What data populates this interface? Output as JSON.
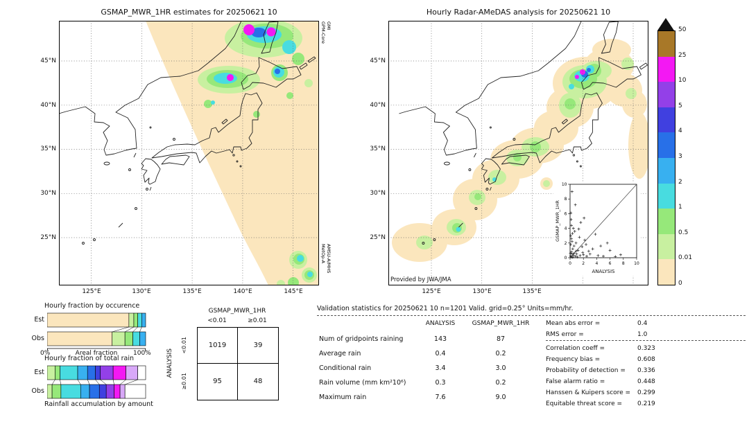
{
  "chart_data": [
    {
      "name": "gsmap_mwr_map",
      "type": "heatmap",
      "title": "GSMAP_MWR_1HR estimates for 20250621 10",
      "x_ticks": [
        "125°E",
        "130°E",
        "135°E",
        "140°E",
        "145°E"
      ],
      "y_ticks": [
        "45°N",
        "40°N",
        "35°N",
        "30°N",
        "25°N"
      ],
      "annotations": [
        "GPM-Core",
        "GMI",
        "MetOp-A",
        "AMSU-A/MHS"
      ],
      "units": "mm/hr"
    },
    {
      "name": "radar_amedas_map",
      "type": "heatmap",
      "title": "Hourly Radar-AMeDAS analysis for 20250621 10",
      "x_ticks": [
        "125°E",
        "130°E",
        "135°E"
      ],
      "y_ticks": [
        "45°N",
        "40°N",
        "35°N",
        "30°N",
        "25°N"
      ],
      "credit": "Provided by JWA/JMA",
      "units": "mm/hr"
    },
    {
      "name": "precip_colorbar",
      "type": "legend",
      "tick_labels": [
        "50",
        "25",
        "10",
        "5",
        "4",
        "3",
        "2",
        "1",
        "0.5",
        "0.01",
        "0"
      ],
      "colors_top_to_bottom": [
        "#a87828",
        "#f318f3",
        "#9340e8",
        "#4040e0",
        "#2870e8",
        "#38b0f0",
        "#48dce0",
        "#96e87a",
        "#c8f0a0",
        "#fbe6bd"
      ],
      "overflow_arrow_color": "#111111"
    },
    {
      "name": "hourly_fraction_by_occurrence",
      "type": "bar",
      "title": "Hourly fraction by occurence",
      "categories": [
        "Est",
        "Obs"
      ],
      "xlabel": "Areal fraction",
      "xlim_labels": [
        "0%",
        "100%"
      ],
      "series": [
        {
          "row": "Est",
          "segments": [
            {
              "color": "#fbe6bd",
              "pct": 83
            },
            {
              "color": "#c8f0a0",
              "pct": 5
            },
            {
              "color": "#96e87a",
              "pct": 4
            },
            {
              "color": "#48dce0",
              "pct": 4
            },
            {
              "color": "#38b0f0",
              "pct": 4
            }
          ]
        },
        {
          "row": "Obs",
          "segments": [
            {
              "color": "#fbe6bd",
              "pct": 66
            },
            {
              "color": "#c8f0a0",
              "pct": 13
            },
            {
              "color": "#96e87a",
              "pct": 8
            },
            {
              "color": "#48dce0",
              "pct": 7
            },
            {
              "color": "#38b0f0",
              "pct": 6
            }
          ]
        }
      ]
    },
    {
      "name": "hourly_fraction_of_total_rain",
      "type": "bar",
      "title": "Hourly fraction of total rain",
      "categories": [
        "Est",
        "Obs"
      ],
      "caption": "Rainfall accumulation by amount",
      "series": [
        {
          "row": "Est",
          "segments": [
            {
              "color": "#c8f0a0",
              "pct": 8
            },
            {
              "color": "#96e87a",
              "pct": 5
            },
            {
              "color": "#48dce0",
              "pct": 18
            },
            {
              "color": "#38b0f0",
              "pct": 10
            },
            {
              "color": "#2870e8",
              "pct": 8
            },
            {
              "color": "#4040e0",
              "pct": 5
            },
            {
              "color": "#9340e8",
              "pct": 13
            },
            {
              "color": "#f318f3",
              "pct": 13
            },
            {
              "color": "#d8a8f8",
              "pct": 12
            },
            {
              "color": "#ffffff",
              "pct": 8
            }
          ]
        },
        {
          "row": "Obs",
          "segments": [
            {
              "color": "#c8f0a0",
              "pct": 5
            },
            {
              "color": "#96e87a",
              "pct": 9
            },
            {
              "color": "#48dce0",
              "pct": 20
            },
            {
              "color": "#38b0f0",
              "pct": 9
            },
            {
              "color": "#2870e8",
              "pct": 10
            },
            {
              "color": "#4040e0",
              "pct": 7
            },
            {
              "color": "#9340e8",
              "pct": 8
            },
            {
              "color": "#f318f3",
              "pct": 6
            },
            {
              "color": "#d8a8f8",
              "pct": 5
            },
            {
              "color": "#ffffff",
              "pct": 21
            }
          ]
        }
      ]
    },
    {
      "name": "contingency_table",
      "type": "table",
      "col_group": "GSMAP_MWR_1HR",
      "row_group": "ANALYSIS",
      "col_labels": [
        "<0.01",
        "≥0.01"
      ],
      "row_labels": [
        "<0.01",
        "≥0.01"
      ],
      "cells": [
        [
          "1019",
          "39"
        ],
        [
          "95",
          "48"
        ]
      ]
    },
    {
      "name": "validation_statistics",
      "type": "table",
      "title": "Validation statistics for 20250621 10  n=1201 Valid. grid=0.25° Units=mm/hr.",
      "col_headers": [
        "ANALYSIS",
        "GSMAP_MWR_1HR"
      ],
      "rows": [
        {
          "label": "Num of gridpoints raining",
          "analysis": "143",
          "gsmap": "87"
        },
        {
          "label": "Average rain",
          "analysis": "0.4",
          "gsmap": "0.2"
        },
        {
          "label": "Conditional rain",
          "analysis": "3.4",
          "gsmap": "3.0"
        },
        {
          "label": "Rain volume (mm km²10⁶)",
          "analysis": "0.3",
          "gsmap": "0.2"
        },
        {
          "label": "Maximum rain",
          "analysis": "7.6",
          "gsmap": "9.0"
        }
      ],
      "summary": [
        {
          "label": "Mean abs error =",
          "value": "0.4"
        },
        {
          "label": "RMS error =",
          "value": "1.0"
        },
        {
          "label": "Correlation coeff =",
          "value": "0.323"
        },
        {
          "label": "Frequency bias =",
          "value": "0.608"
        },
        {
          "label": "Probability of detection =",
          "value": "0.336"
        },
        {
          "label": "False alarm ratio =",
          "value": "0.448"
        },
        {
          "label": "Hanssen & Kuipers score =",
          "value": "0.299"
        },
        {
          "label": "Equitable threat score =",
          "value": "0.219"
        }
      ]
    },
    {
      "name": "inset_scatter",
      "type": "scatter",
      "xlabel": "ANALYSIS",
      "ylabel": "GSMAP_MWR_1HR",
      "xlim": [
        0,
        10
      ],
      "ylim": [
        0,
        10
      ],
      "ticks": [
        0,
        2,
        4,
        6,
        8,
        10
      ],
      "diagonal": true,
      "points": [
        [
          0.1,
          0.2
        ],
        [
          0.2,
          0.1
        ],
        [
          0.3,
          0.5
        ],
        [
          0.5,
          0.3
        ],
        [
          0.2,
          0.8
        ],
        [
          0.8,
          0.2
        ],
        [
          1.0,
          0.5
        ],
        [
          0.4,
          1.2
        ],
        [
          1.5,
          0.3
        ],
        [
          0.1,
          1.8
        ],
        [
          2.0,
          0.4
        ],
        [
          0.6,
          0.6
        ],
        [
          1.2,
          1.0
        ],
        [
          0.3,
          2.2
        ],
        [
          2.5,
          0.2
        ],
        [
          0.1,
          3.0
        ],
        [
          3.0,
          0.5
        ],
        [
          0.2,
          2.6
        ],
        [
          1.8,
          1.5
        ],
        [
          0.5,
          4.0
        ],
        [
          4.2,
          0.3
        ],
        [
          0.9,
          2.0
        ],
        [
          2.2,
          2.4
        ],
        [
          0.15,
          5.2
        ],
        [
          5.0,
          0.2
        ],
        [
          3.4,
          1.2
        ],
        [
          0.7,
          3.6
        ],
        [
          1.1,
          0.1
        ],
        [
          0.05,
          0.6
        ],
        [
          0.4,
          0.05
        ],
        [
          6.0,
          1.0
        ],
        [
          7.6,
          0.4
        ],
        [
          0.3,
          9.0
        ],
        [
          0.8,
          7.2
        ],
        [
          1.6,
          4.8
        ],
        [
          2.8,
          0.9
        ],
        [
          0.2,
          4.4
        ],
        [
          5.6,
          2.0
        ],
        [
          1.4,
          2.8
        ],
        [
          3.8,
          3.2
        ],
        [
          0.6,
          1.6
        ],
        [
          2.4,
          1.8
        ],
        [
          0.9,
          0.9
        ],
        [
          1.9,
          0.7
        ],
        [
          4.6,
          1.6
        ],
        [
          0.35,
          3.3
        ],
        [
          6.8,
          0.15
        ],
        [
          0.12,
          6.1
        ],
        [
          2.1,
          5.4
        ],
        [
          1.3,
          3.9
        ]
      ]
    }
  ]
}
